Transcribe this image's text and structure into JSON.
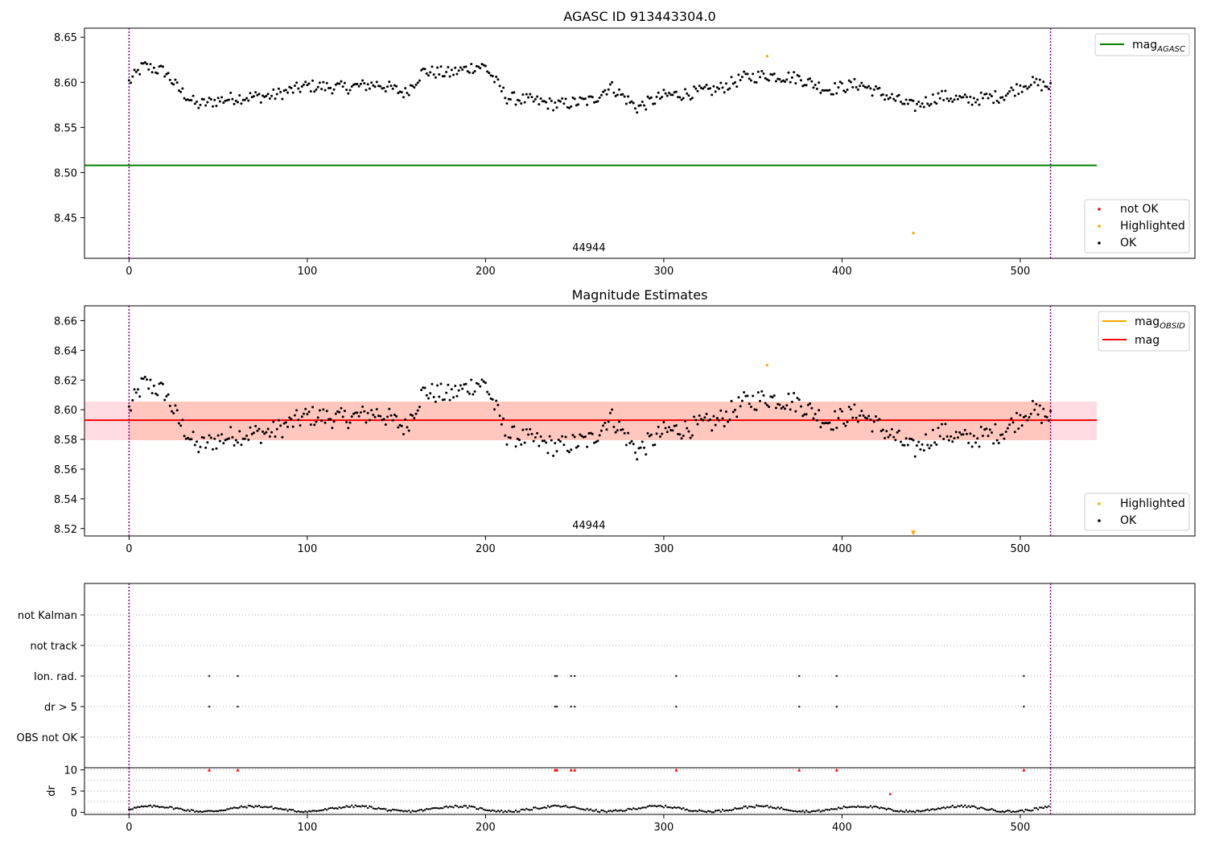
{
  "chart_data": [
    {
      "type": "scatter",
      "title": "AGASC ID 913443304.0",
      "xlabel": "",
      "ylabel": "",
      "xlim": [
        -25,
        598
      ],
      "ylim": [
        8.405,
        8.66
      ],
      "yticks": [
        8.45,
        8.5,
        8.55,
        8.6,
        8.65
      ],
      "xticks": [
        0,
        100,
        200,
        300,
        400,
        500
      ],
      "obsid_label": "44944",
      "obsid_label_x": 258,
      "vlines": [
        0,
        517
      ],
      "mag_agasc": 8.508,
      "mag_agasc_xrange": [
        -25,
        543
      ],
      "highlighted_points": [
        {
          "x": 358,
          "y": 8.629
        },
        {
          "x": 440,
          "y": 8.433
        }
      ],
      "legends": {
        "lines": [
          {
            "label": "mag",
            "sub": "AGASC",
            "color": "#008000"
          }
        ],
        "points": [
          {
            "label": "not OK",
            "color": "#ff0000"
          },
          {
            "label": "Highlighted",
            "color": "#ffa500"
          },
          {
            "label": "OK",
            "color": "#000000"
          }
        ]
      }
    },
    {
      "type": "scatter",
      "title": "Magnitude Estimates",
      "xlabel": "",
      "ylabel": "",
      "xlim": [
        -25,
        598
      ],
      "ylim": [
        8.515,
        8.67
      ],
      "yticks": [
        8.52,
        8.54,
        8.56,
        8.58,
        8.6,
        8.62,
        8.64,
        8.66
      ],
      "xticks": [
        0,
        100,
        200,
        300,
        400,
        500
      ],
      "obsid_label": "44944",
      "obsid_label_x": 258,
      "vlines": [
        0,
        517
      ],
      "mag": 8.593,
      "mag_band": [
        8.5795,
        8.6055
      ],
      "mag_obsid": 8.593,
      "band_xrange": [
        -25,
        543
      ],
      "highlighted_points": [
        {
          "x": 358,
          "y": 8.63
        }
      ],
      "offscale_marker": {
        "x": 440,
        "y": 8.517
      },
      "legends": {
        "lines": [
          {
            "label": "mag",
            "sub": "OBSID",
            "color": "#ffa500"
          },
          {
            "label": "mag",
            "sub": "",
            "color": "#ff0000"
          }
        ],
        "points": [
          {
            "label": "Highlighted",
            "color": "#ffa500"
          },
          {
            "label": "OK",
            "color": "#000000"
          }
        ]
      }
    },
    {
      "type": "scatter",
      "title": "",
      "xlim": [
        -25,
        598
      ],
      "flag_rows": [
        "not Kalman",
        "not track",
        "Ion. rad.",
        "dr > 5",
        "OBS not OK"
      ],
      "flag_points": {
        "Ion. rad.": [
          45,
          61,
          239,
          240,
          248,
          250,
          307,
          376,
          397,
          502
        ],
        "dr > 5": [
          45,
          61,
          239,
          240,
          248,
          250,
          307,
          376,
          397,
          502
        ]
      },
      "vlines": [
        0,
        517
      ]
    },
    {
      "type": "scatter",
      "title": "",
      "xlabel": "",
      "ylabel": "dr",
      "xlim": [
        -25,
        598
      ],
      "ylim": [
        -0.5,
        10.5
      ],
      "yticks": [
        0,
        5,
        10
      ],
      "xticks": [
        0,
        100,
        200,
        300,
        400,
        500
      ],
      "gridlines": [
        0,
        2.5,
        5,
        7.5,
        10
      ],
      "capped_points": [
        45,
        61,
        239,
        240,
        248,
        250,
        307,
        376,
        397,
        502
      ],
      "capped_value": 10,
      "outlier_points": [
        {
          "x": 427,
          "y": 4.3
        }
      ],
      "n_points": 517,
      "vlines": [
        0,
        517
      ]
    }
  ]
}
